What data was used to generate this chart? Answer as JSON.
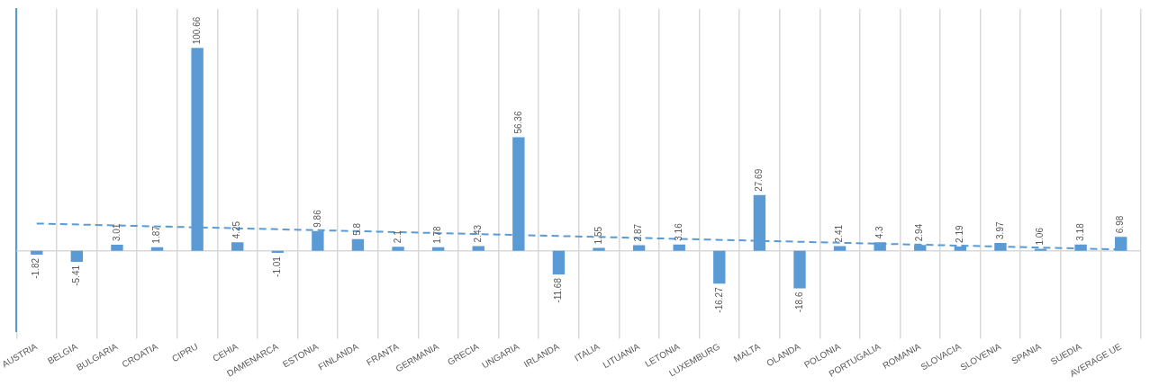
{
  "chart_data": {
    "type": "bar",
    "categories": [
      "AUSTRIA",
      "BELGIA",
      "BULGARIA",
      "CROATIA",
      "CIPRU",
      "CEHIA",
      "DAMENARCA",
      "ESTONIA",
      "FINLANDA",
      "FRANTA",
      "GERMANIA",
      "GRECIA",
      "UNGARIA",
      "IRLANDA",
      "ITALIA",
      "LITUANIA",
      "LETONIA",
      "LUXEMBURG",
      "MALTA",
      "OLANDA",
      "POLONIA",
      "PORTUGALIA",
      "ROMANIA",
      "SLOVACIA",
      "SLOVENIA",
      "SPANIA",
      "SUEDIA",
      "AVERAGE UE"
    ],
    "series": [
      {
        "color": "#5b9bd5",
        "values": [
          -1.82,
          -5.41,
          3.01,
          1.87,
          100.66,
          4.25,
          -1.01,
          9.86,
          5.8,
          2.1,
          1.78,
          2.43,
          56.36,
          -11.68,
          1.55,
          2.87,
          3.16,
          -16.27,
          27.69,
          -18.6,
          2.41,
          4.3,
          2.94,
          2.19,
          3.97,
          1.06,
          3.18,
          6.98
        ],
        "value_labels": [
          "-1.82",
          "-5.41",
          "3.01",
          "1.87",
          "100.66",
          "4.25",
          "-1.01",
          "9.86",
          "5.8",
          "2.1",
          "1.78",
          "2.43",
          "56.36",
          "-11.68",
          "1.55",
          "2.87",
          "3.16",
          "-16.27",
          "27.69",
          "-18.6",
          "2.41",
          "4.3",
          "2.94",
          "2.19",
          "3.97",
          "1.06",
          "3.18",
          "6.98"
        ]
      },
      {
        "type": "line",
        "color": "#5b9bd5",
        "x": [
          "AUSTRIA",
          "AVERAGE UE"
        ],
        "values": [
          13.6,
          0.7
        ],
        "line_style": "dashed",
        "marker": "none"
      }
    ],
    "grid": "x",
    "legend": false
  }
}
